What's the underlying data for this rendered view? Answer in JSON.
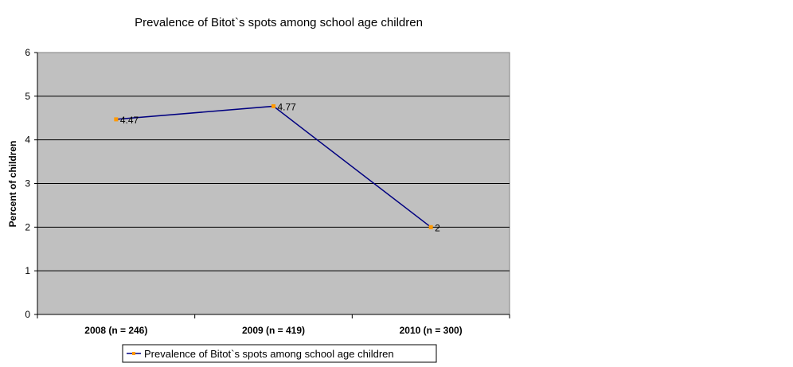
{
  "chart_data": {
    "type": "line",
    "title": "Prevalence of Bitot`s spots among school age children",
    "ylabel": "Percent of children",
    "xlabel": "",
    "categories": [
      "2008 (n = 246)",
      "2009 (n = 419)",
      "2010 (n = 300)"
    ],
    "series": [
      {
        "name": "Prevalence of Bitot`s spots among school age children",
        "values": [
          4.47,
          4.77,
          2
        ],
        "data_labels": [
          "4.47",
          "4.77",
          "2"
        ],
        "line_color": "#000080",
        "marker_color": "#FF9900"
      }
    ],
    "ylim": [
      0,
      6
    ],
    "yticks": [
      "0",
      "1",
      "2",
      "3",
      "4",
      "5",
      "6"
    ],
    "grid": true,
    "plot_background": "#C0C0C0",
    "legend_position": "bottom"
  }
}
